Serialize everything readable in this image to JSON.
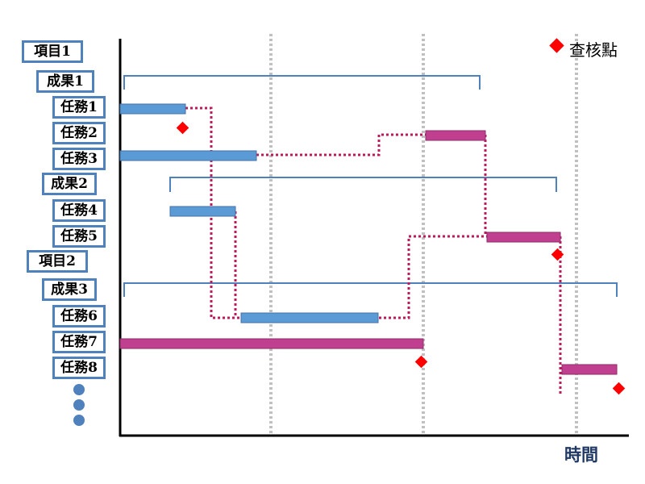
{
  "labels": {
    "project1": "項目1",
    "result1": "成果1",
    "task1": "任務1",
    "task2": "任務2",
    "task3": "任務3",
    "result2": "成果2",
    "task4": "任務4",
    "task5": "任務5",
    "project2": "項目2",
    "result3": "成果3",
    "task6": "任務6",
    "task7": "任務7",
    "task8": "任務8"
  },
  "legend": {
    "checkpoint_label": "查核點"
  },
  "axis": {
    "x_label": "時間"
  },
  "colors": {
    "blue_task": "#5b9bd5",
    "pink_task": "#c0408f",
    "checkpoint": "#ff0000",
    "dependency_line": "#c0185a",
    "bracket": "#4f81bd",
    "milestone_divider": "#c0c0c0"
  }
}
